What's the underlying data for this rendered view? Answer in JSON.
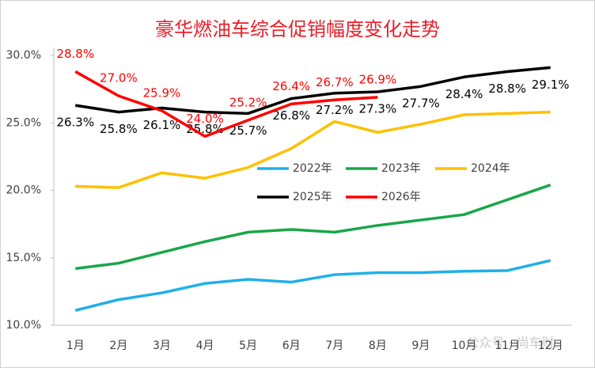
{
  "chart_data": {
    "type": "line",
    "title": "豪华燃油车综合促销幅度变化走势",
    "categories": [
      "1月",
      "2月",
      "3月",
      "4月",
      "5月",
      "6月",
      "7月",
      "8月",
      "9月",
      "10月",
      "11月",
      "12月"
    ],
    "ylim": [
      10,
      30
    ],
    "yticks": [
      {
        "value": 10,
        "label": "10.0%"
      },
      {
        "value": 15,
        "label": "15.0%"
      },
      {
        "value": 20,
        "label": "20.0%"
      },
      {
        "value": 25,
        "label": "25.0%"
      },
      {
        "value": 30,
        "label": "30.0%"
      }
    ],
    "grid": false,
    "legend": "center",
    "watermark": "公众号 · 尚车财",
    "series": [
      {
        "name": "2022年",
        "color": "#1fb0e8",
        "values": [
          11.1,
          11.9,
          12.4,
          13.1,
          13.4,
          13.2,
          13.75,
          13.9,
          13.9,
          14.0,
          14.05,
          14.8
        ]
      },
      {
        "name": "2023年",
        "color": "#1aa64a",
        "values": [
          14.2,
          14.6,
          15.4,
          16.2,
          16.9,
          17.1,
          16.9,
          17.4,
          17.8,
          18.2,
          19.3,
          20.4
        ]
      },
      {
        "name": "2024年",
        "color": "#ffc000",
        "values": [
          20.3,
          20.2,
          21.3,
          20.9,
          21.7,
          23.1,
          25.1,
          24.3,
          24.9,
          25.6,
          25.7,
          25.8
        ]
      },
      {
        "name": "2025年",
        "color": "#000000",
        "values": [
          26.3,
          25.8,
          26.1,
          25.8,
          25.7,
          26.8,
          27.2,
          27.3,
          27.7,
          28.4,
          28.8,
          29.1
        ],
        "value_labels": [
          "26.3%",
          "25.8%",
          "26.1%",
          "25.8%",
          "25.7%",
          "26.8%",
          "27.2%",
          "27.3%",
          "27.7%",
          "28.4%",
          "28.8%",
          "29.1%"
        ]
      },
      {
        "name": "2026年",
        "color": "#ff0000",
        "values": [
          28.8,
          27.0,
          25.9,
          24.0,
          25.2,
          26.4,
          26.7,
          26.9,
          null,
          null,
          null,
          null
        ],
        "value_labels": [
          "28.8%",
          "27.0%",
          "25.9%",
          "24.0%",
          "25.2%",
          "26.4%",
          "26.7%",
          "26.9%",
          null,
          null,
          null,
          null
        ]
      }
    ]
  }
}
